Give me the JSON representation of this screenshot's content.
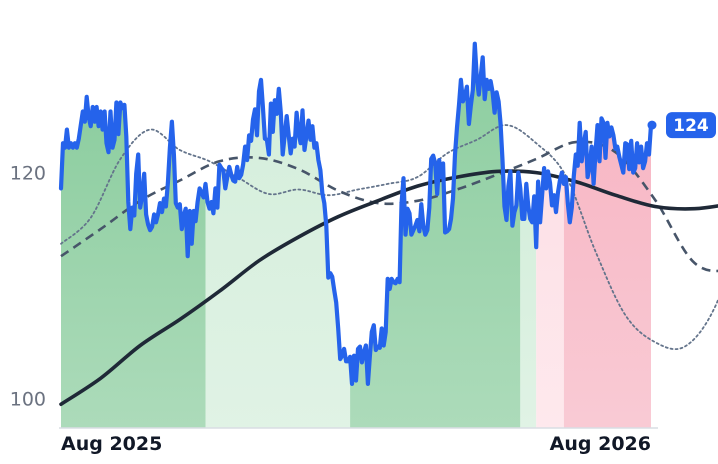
{
  "chart_data": {
    "type": "line",
    "title": "",
    "xlabel": "",
    "ylabel": "",
    "x_tick_labels": [
      "Aug 2025",
      "Aug 2026"
    ],
    "y_ticks": [
      100,
      120
    ],
    "ylim": [
      97.4,
      133.5
    ],
    "grid": false,
    "colors": {
      "price": "#2563eb",
      "slow_ma": "#1f2937",
      "mid_ma": "#475569",
      "fast_ma": "#64748b",
      "up_dark": "#8ccd9f",
      "up_light": "#d4eedb",
      "down_dark": "#f7b6c4",
      "down_light": "#fde0e6",
      "badge": "#2563eb"
    },
    "last_value_label": "124",
    "price_series": {
      "name": "price",
      "values": [
        118.6,
        122.6,
        122.2,
        123.8,
        122.2,
        122.6,
        122.2,
        122.6,
        122.2,
        123.0,
        124.2,
        125.4,
        124.5,
        126.7,
        124.9,
        124.1,
        125.8,
        124.5,
        125.8,
        124.1,
        125.4,
        123.8,
        125.4,
        122.6,
        121.8,
        125.4,
        122.2,
        122.9,
        126.2,
        123.4,
        126.2,
        125.7,
        126.0,
        123.2,
        117.4,
        115.0,
        116.9,
        116.2,
        119.9,
        121.6,
        116.9,
        118.0,
        119.9,
        116.3,
        115.4,
        114.9,
        115.2,
        116.3,
        115.6,
        116.3,
        117.3,
        116.5,
        117.7,
        117.0,
        119.1,
        122.2,
        124.5,
        121.6,
        117.3,
        116.9,
        117.2,
        115.0,
        116.2,
        116.8,
        112.6,
        116.6,
        113.7,
        116.6,
        115.7,
        117.4,
        118.6,
        118.2,
        117.8,
        119.0,
        117.4,
        116.8,
        117.4,
        116.4,
        118.6,
        116.9,
        120.7,
        120.4,
        120.2,
        118.6,
        119.6,
        120.5,
        119.8,
        119.3,
        119.2,
        120.5,
        119.5,
        119.8,
        120.7,
        122.3,
        121.1,
        123.3,
        122.8,
        124.7,
        125.6,
        123.3,
        127.2,
        128.2,
        125.8,
        123.0,
        122.9,
        121.6,
        126.1,
        123.6,
        126.4,
        125.2,
        127.4,
        125.3,
        121.6,
        123.3,
        125.0,
        123.3,
        121.7,
        123.0,
        122.3,
        125.3,
        123.5,
        122.6,
        125.5,
        122.0,
        123.3,
        124.6,
        122.9,
        124.1,
        122.2,
        122.6,
        121.1,
        120.2,
        118.2,
        117.3,
        115.3,
        110.7,
        111.1,
        110.8,
        109.6,
        108.5,
        106.2,
        103.5,
        103.8,
        104.4,
        103.3,
        103.3,
        103.7,
        101.3,
        103.8,
        101.6,
        104.4,
        104.6,
        103.2,
        104.1,
        104.7,
        101.3,
        103.8,
        105.9,
        106.5,
        104.3,
        104.6,
        104.5,
        106.2,
        104.7,
        105.9,
        110.6,
        109.7,
        110.6,
        110.3,
        110.2,
        110.6,
        110.3,
        117.2,
        119.5,
        114.5,
        116.8,
        116.4,
        114.5,
        114.9,
        115.3,
        115.8,
        114.8,
        117.2,
        115.3,
        114.5,
        114.9,
        116.9,
        121.2,
        121.5,
        120.8,
        118.1,
        121.1,
        119.6,
        120.8,
        114.7,
        114.8,
        115.0,
        115.9,
        117.7,
        121.6,
        124.0,
        126.0,
        128.2,
        126.3,
        126.8,
        127.6,
        124.3,
        125.9,
        127.3,
        131.4,
        128.4,
        126.9,
        128.5,
        130.2,
        126.5,
        128.2,
        127.4,
        128.1,
        127.1,
        125.3,
        127.1,
        126.3,
        124.4,
        121.1,
        117.0,
        115.8,
        118.8,
        120.1,
        115.3,
        116.5,
        117.1,
        120.0,
        118.6,
        115.9,
        115.9,
        119.0,
        117.1,
        115.9,
        115.6,
        117.9,
        113.4,
        119.2,
        115.6,
        118.0,
        120.4,
        118.6,
        120.1,
        119.1,
        117.1,
        118.0,
        116.5,
        118.2,
        119.3,
        120.0,
        119.0,
        119.6,
        117.3,
        115.6,
        116.9,
        119.7,
        121.6,
        120.6,
        124.4,
        121.0,
        122.5,
        123.6,
        119.6,
        120.5,
        122.3,
        119.0,
        121.9,
        124.2,
        121.0,
        124.8,
        124.4,
        121.3,
        124.4,
        123.2,
        124.0,
        123.3,
        122.1,
        122.3,
        121.4,
        120.7,
        120.0,
        122.6,
        122.5,
        120.3,
        122.8,
        120.0,
        120.4,
        122.6,
        120.9,
        122.3,
        120.4,
        121.0,
        122.6,
        121.6,
        124.2
      ]
    },
    "slow_ma": {
      "name": "",
      "values": [
        [
          0,
          99.5
        ],
        [
          20,
          101.8
        ],
        [
          40,
          104.7
        ],
        [
          60,
          107.0
        ],
        [
          80,
          109.5
        ],
        [
          100,
          112.2
        ],
        [
          120,
          114.3
        ],
        [
          140,
          116.1
        ],
        [
          160,
          117.5
        ],
        [
          180,
          118.8
        ],
        [
          200,
          119.6
        ],
        [
          220,
          120.1
        ],
        [
          240,
          120.0
        ],
        [
          260,
          119.2
        ],
        [
          280,
          118.0
        ],
        [
          300,
          117.0
        ],
        [
          320,
          116.8
        ],
        [
          340,
          117.3
        ],
        [
          360,
          118.0
        ],
        [
          380,
          118.2
        ],
        [
          400,
          118.6
        ],
        [
          420,
          118.7
        ],
        [
          440,
          118.4
        ]
      ]
    },
    "mid_ma": {
      "name": "",
      "values": [
        [
          0,
          112.6
        ],
        [
          20,
          115.0
        ],
        [
          40,
          117.5
        ],
        [
          60,
          119.3
        ],
        [
          80,
          121.0
        ],
        [
          100,
          121.3
        ],
        [
          120,
          120.3
        ],
        [
          140,
          118.4
        ],
        [
          160,
          117.3
        ],
        [
          180,
          117.5
        ],
        [
          200,
          118.5
        ],
        [
          220,
          119.8
        ],
        [
          240,
          121.2
        ],
        [
          260,
          122.7
        ],
        [
          280,
          121.8
        ],
        [
          300,
          117.6
        ],
        [
          320,
          112.0
        ],
        [
          340,
          111.5
        ],
        [
          360,
          113.2
        ],
        [
          380,
          117.0
        ],
        [
          400,
          120.5
        ],
        [
          420,
          121.3
        ],
        [
          440,
          122.2
        ]
      ]
    },
    "fast_ma": {
      "name": "",
      "values": [
        [
          0,
          113.7
        ],
        [
          15,
          116.0
        ],
        [
          30,
          121.2
        ],
        [
          45,
          123.8
        ],
        [
          60,
          122.0
        ],
        [
          75,
          121.0
        ],
        [
          90,
          119.5
        ],
        [
          105,
          118.1
        ],
        [
          120,
          118.5
        ],
        [
          135,
          118.0
        ],
        [
          150,
          118.5
        ],
        [
          165,
          119.0
        ],
        [
          180,
          119.6
        ],
        [
          195,
          121.7
        ],
        [
          210,
          122.9
        ],
        [
          225,
          124.2
        ],
        [
          240,
          122.6
        ],
        [
          255,
          119.7
        ],
        [
          270,
          113.0
        ],
        [
          285,
          107.4
        ],
        [
          300,
          105.0
        ],
        [
          315,
          104.6
        ],
        [
          330,
          108.0
        ],
        [
          345,
          115.3
        ],
        [
          360,
          120.6
        ],
        [
          375,
          123.4
        ],
        [
          390,
          126.2
        ],
        [
          405,
          124.5
        ],
        [
          420,
          119.7
        ],
        [
          435,
          119.8
        ],
        [
          450,
          121.1
        ],
        [
          465,
          121.5
        ]
      ]
    },
    "regions": [
      {
        "type": "up",
        "shade": "dark",
        "start": 0,
        "end": 73
      },
      {
        "type": "up",
        "shade": "light",
        "start": 73,
        "end": 146
      },
      {
        "type": "up",
        "shade": "dark",
        "start": 146,
        "end": 232
      },
      {
        "type": "up",
        "shade": "light",
        "start": 232,
        "end": 240
      },
      {
        "type": "down",
        "shade": "light",
        "start": 240,
        "end": 254
      },
      {
        "type": "down",
        "shade": "dark",
        "start": 254,
        "end": 304
      },
      {
        "type": "down",
        "shade": "light",
        "start": 304,
        "end": 322
      },
      {
        "type": "up",
        "shade": "light",
        "start": 322,
        "end": 358
      },
      {
        "type": "up",
        "shade": "dark",
        "start": 358,
        "end": 390
      },
      {
        "type": "up",
        "shade": "light",
        "start": 390,
        "end": 440
      },
      {
        "type": "up",
        "shade": "dark",
        "start": 440,
        "end": 445
      }
    ]
  }
}
